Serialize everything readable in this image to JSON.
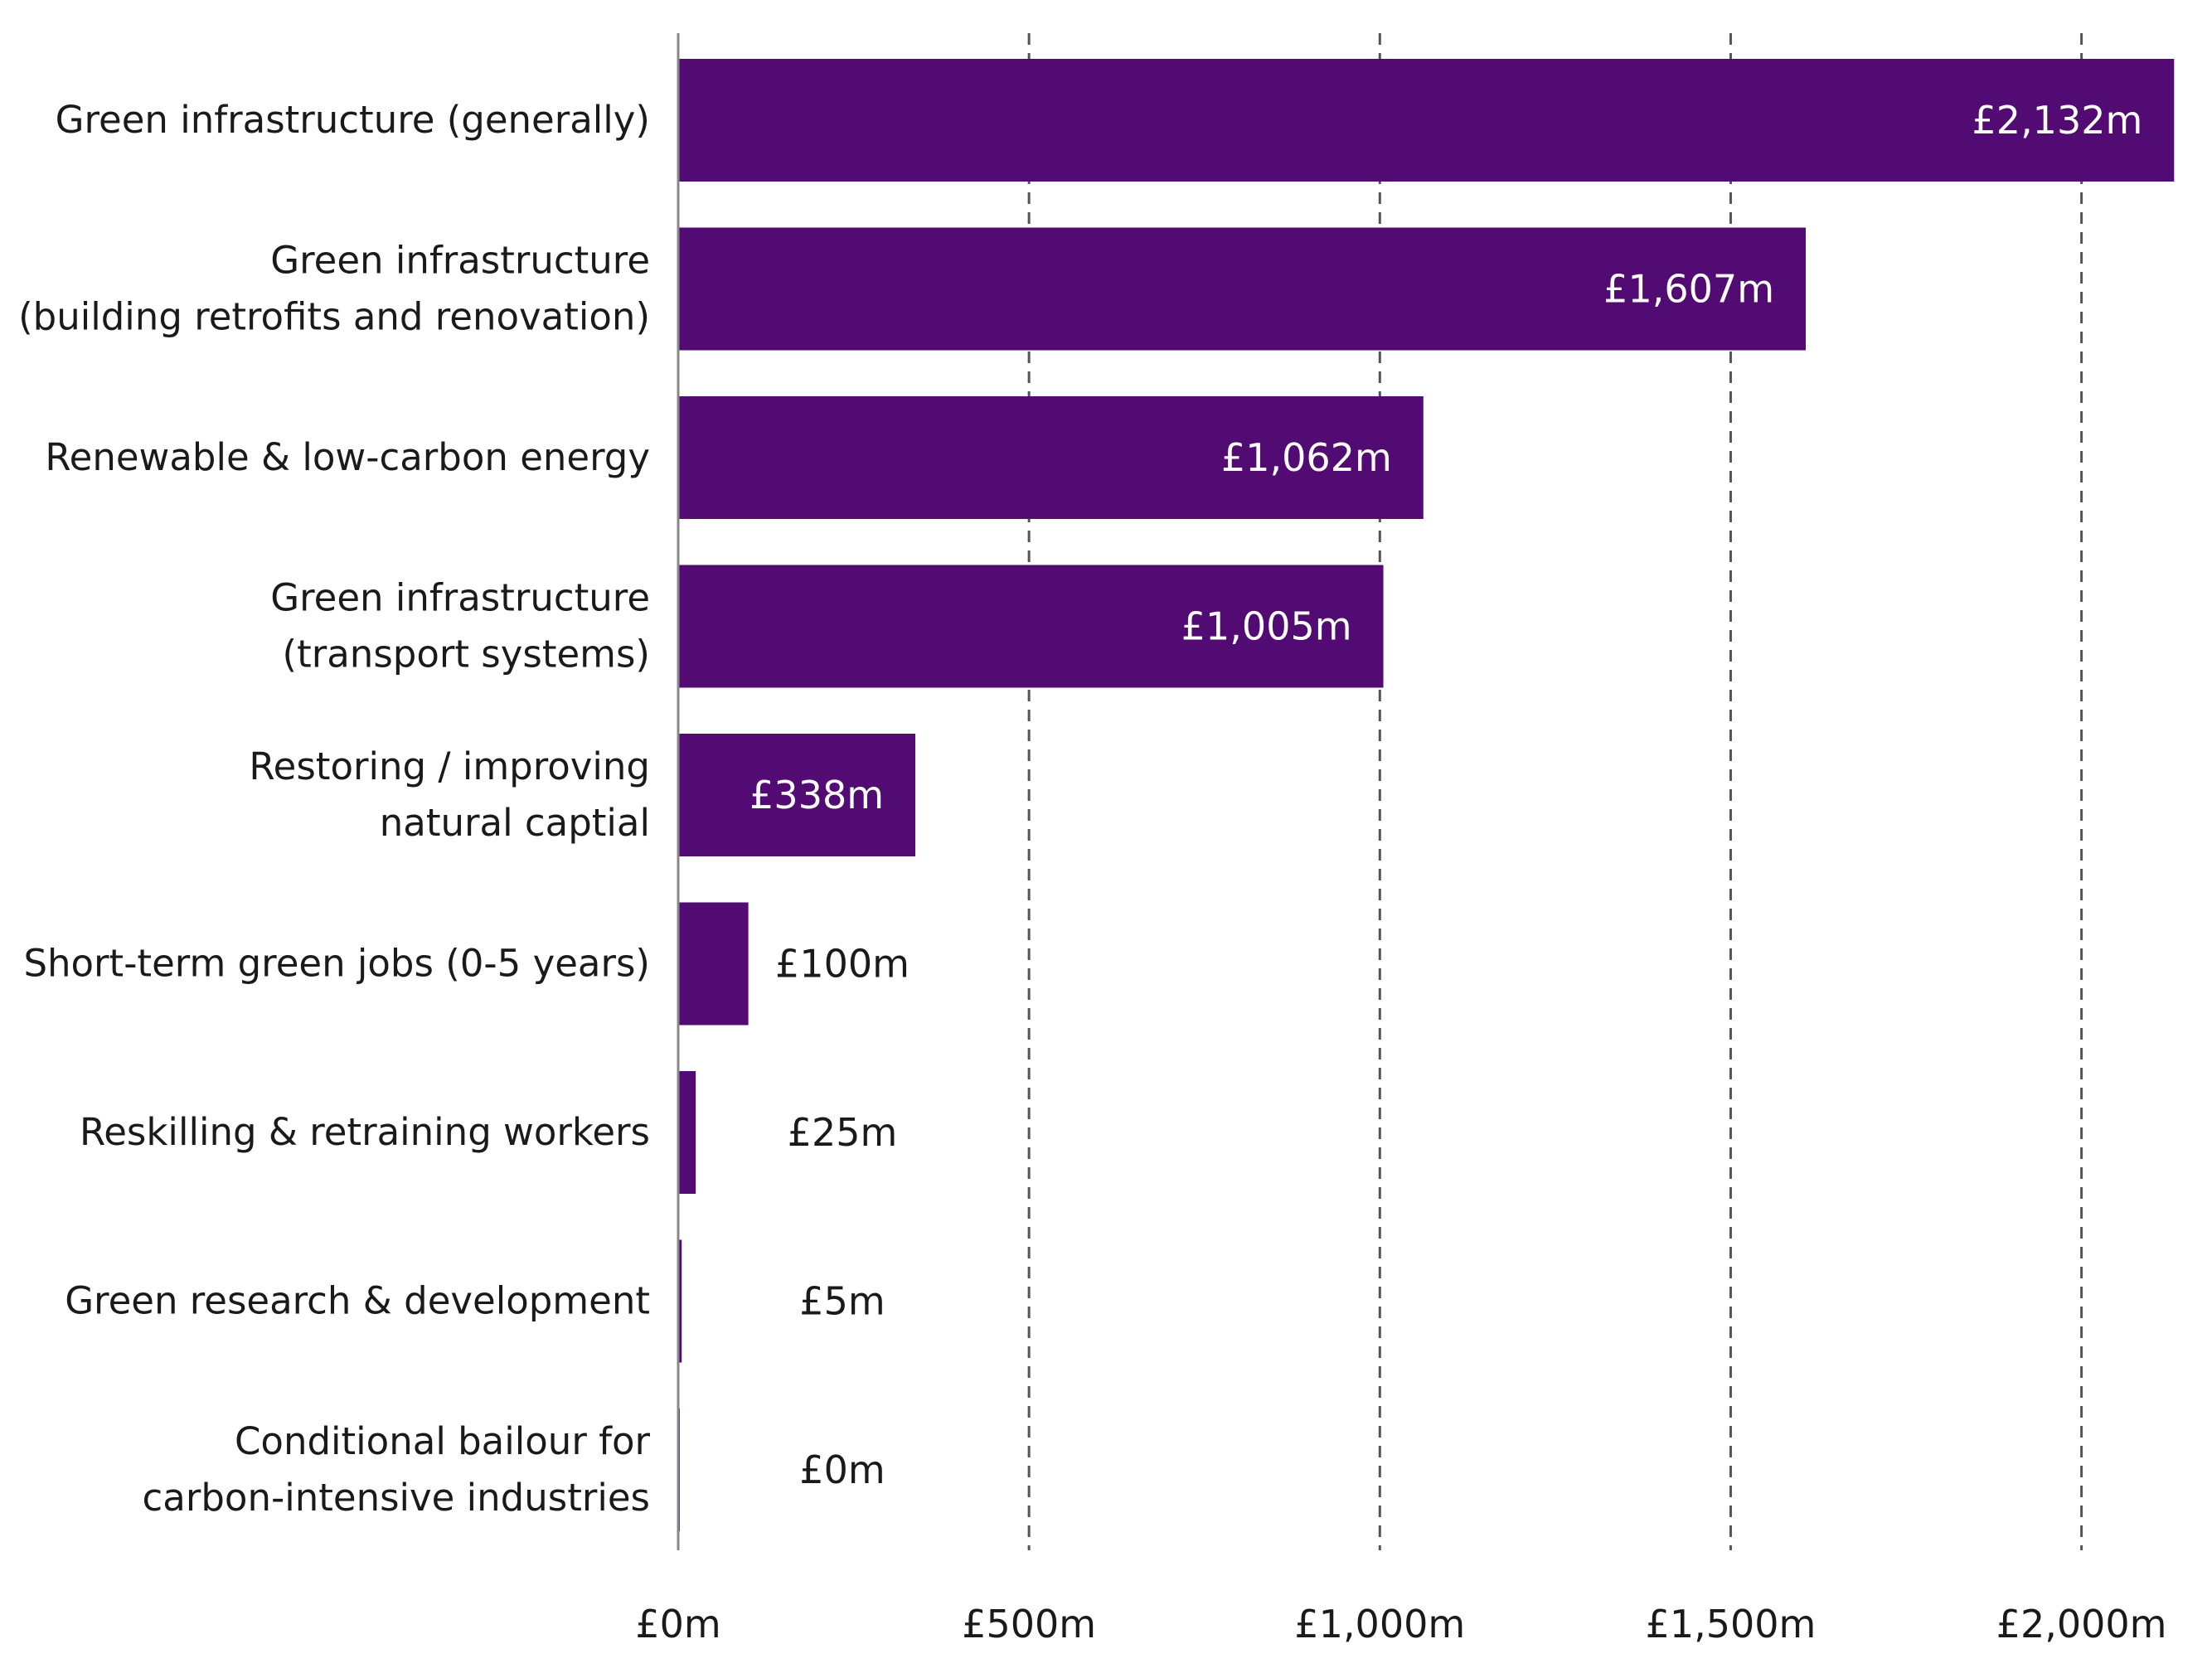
{
  "chart_data": {
    "type": "bar",
    "orientation": "horizontal",
    "categories": [
      [
        "Green infrastructure (generally)"
      ],
      [
        "Green infrastructure ",
        "(building retrofits and renovation)"
      ],
      [
        "Renewable & low-carbon energy"
      ],
      [
        "Green infrastructure",
        "(transport systems)"
      ],
      [
        "Restoring / improving",
        "natural captial"
      ],
      [
        "Short-term green jobs (0-5 years)"
      ],
      [
        "Reskilling & retraining workers"
      ],
      [
        "Green research & development"
      ],
      [
        "Conditional bailour for",
        "carbon-intensive industries"
      ]
    ],
    "values": [
      2132,
      1607,
      1062,
      1005,
      338,
      100,
      25,
      5,
      0
    ],
    "data_labels": [
      "£2,132m",
      "£1,607m",
      "£1,062m",
      "£1,005m",
      "£338m",
      "£100m",
      "£25m",
      "£5m",
      "£0m"
    ],
    "xlim": [
      0,
      2132
    ],
    "xticks": [
      0,
      500,
      1000,
      1500,
      2000
    ],
    "xtick_labels": [
      "£0m",
      "£500m",
      "£1,000m",
      "£1,500m",
      "£2,000m"
    ],
    "grid": "vertical dashed",
    "title": "",
    "xlabel": "",
    "ylabel": "",
    "colors": {
      "bar": "#510B72",
      "label_inside": "#ffffff",
      "label_outside": "#1a1a1a",
      "grid": "#555555",
      "axis": "#888888"
    }
  }
}
